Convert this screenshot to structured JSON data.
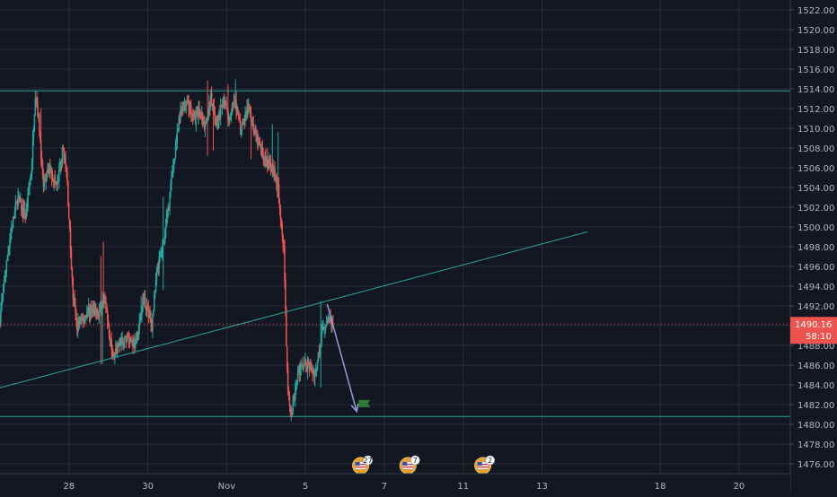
{
  "chart_data": {
    "type": "candlestick",
    "title": "",
    "xlabel": "",
    "ylabel": "",
    "ylim": [
      1475,
      1523
    ],
    "y_ticks": [
      1476,
      1478,
      1480,
      1482,
      1484,
      1486,
      1488,
      1490,
      1492,
      1494,
      1496,
      1498,
      1500,
      1502,
      1504,
      1506,
      1508,
      1510,
      1512,
      1514,
      1516,
      1518,
      1520,
      1522
    ],
    "y_tick_labels": [
      "1476.00",
      "1478.00",
      "1480.00",
      "1482.00",
      "1484.00",
      "1486.00",
      "1488.00",
      "1490.00",
      "1492.00",
      "1494.00",
      "1496.00",
      "1498.00",
      "1500.00",
      "1502.00",
      "1504.00",
      "1506.00",
      "1508.00",
      "1510.00",
      "1512.00",
      "1514.00",
      "1516.00",
      "1518.00",
      "1520.00",
      "1522.00"
    ],
    "x_tick_labels": [
      {
        "label": "28",
        "day": 1.0
      },
      {
        "label": "30",
        "day": 3.0
      },
      {
        "label": "Nov",
        "day": 5.0
      },
      {
        "label": "5",
        "day": 7.0
      },
      {
        "label": "7",
        "day": 9.0
      },
      {
        "label": "11",
        "day": 11.0
      },
      {
        "label": "13",
        "day": 13.0
      },
      {
        "label": "18",
        "day": 16.0
      },
      {
        "label": "20",
        "day": 18.0
      }
    ],
    "xlim": [
      -0.75,
      19.3
    ],
    "grid": true,
    "colors": {
      "background": "#131722",
      "grid": "#2a2e39",
      "up": "#26a69a",
      "down": "#ef5350",
      "level_line": "#26a69a",
      "trend_line": "#26a69a",
      "arrow": "#8f9ed9",
      "current_price": "#ef5350",
      "flag": "#2e7d32",
      "axis_text": "#b2b5be"
    },
    "waypoints": [
      [
        -0.75,
        1491
      ],
      [
        -0.5,
        1499
      ],
      [
        -0.3,
        1503
      ],
      [
        -0.1,
        1501
      ],
      [
        0.05,
        1506
      ],
      [
        0.15,
        1514
      ],
      [
        0.25,
        1510
      ],
      [
        0.35,
        1504
      ],
      [
        0.5,
        1506
      ],
      [
        0.7,
        1504
      ],
      [
        0.85,
        1508
      ],
      [
        0.95,
        1505
      ],
      [
        1.1,
        1493
      ],
      [
        1.2,
        1490
      ],
      [
        1.4,
        1491
      ],
      [
        1.6,
        1492
      ],
      [
        1.75,
        1491
      ],
      [
        1.9,
        1493
      ],
      [
        2.1,
        1487
      ],
      [
        2.3,
        1488
      ],
      [
        2.5,
        1489
      ],
      [
        2.7,
        1488
      ],
      [
        2.9,
        1493
      ],
      [
        3.1,
        1490
      ],
      [
        3.25,
        1496
      ],
      [
        3.4,
        1498
      ],
      [
        3.55,
        1503
      ],
      [
        3.7,
        1508
      ],
      [
        3.85,
        1512
      ],
      [
        4.0,
        1513
      ],
      [
        4.15,
        1511
      ],
      [
        4.3,
        1512
      ],
      [
        4.45,
        1510
      ],
      [
        4.6,
        1513
      ],
      [
        4.75,
        1510
      ],
      [
        4.9,
        1513
      ],
      [
        5.05,
        1511
      ],
      [
        5.2,
        1513
      ],
      [
        5.35,
        1510
      ],
      [
        5.55,
        1512
      ],
      [
        5.75,
        1509
      ],
      [
        5.95,
        1507
      ],
      [
        6.15,
        1506
      ],
      [
        6.3,
        1504
      ],
      [
        6.45,
        1498
      ],
      [
        6.55,
        1483
      ],
      [
        6.65,
        1481
      ],
      [
        6.8,
        1485
      ],
      [
        6.95,
        1486
      ],
      [
        7.1,
        1486
      ],
      [
        7.25,
        1485
      ],
      [
        7.4,
        1489
      ],
      [
        7.55,
        1491
      ],
      [
        7.7,
        1490.2
      ]
    ],
    "horizontal_levels": [
      1513.8,
      1480.8
    ],
    "current_price": 1490.16,
    "current_price_label": "1490.16",
    "countdown_label": "58:10",
    "trend_line": {
      "from": [
        -0.75,
        1483.7
      ],
      "to": [
        14.15,
        1499.5
      ]
    },
    "arrow": {
      "from": [
        7.55,
        1492.2
      ],
      "to": [
        8.3,
        1481.3
      ]
    },
    "flag": {
      "day": 8.35,
      "price": 1482.1
    },
    "events": [
      {
        "label": "27",
        "icon": "us-flag-icon",
        "day": 8.4
      },
      {
        "label": "7",
        "icon": "us-flag-icon",
        "day": 9.6
      },
      {
        "label": "2",
        "icon": "us-flag-icon",
        "day": 11.5
      }
    ]
  }
}
